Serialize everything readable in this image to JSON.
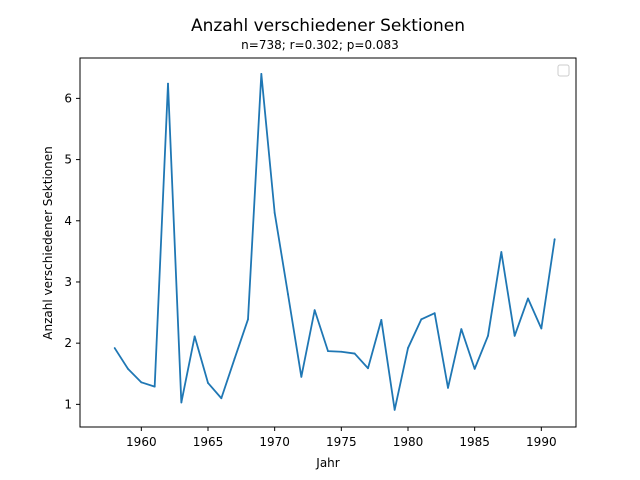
{
  "chart_data": {
    "type": "line",
    "title": "Anzahl verschiedener Sektionen",
    "subtitle": "n=738; r=0.302; p=0.083",
    "xlabel": "Jahr",
    "ylabel": "Anzahl verschiedener Sektionen",
    "xlim": [
      1955.4,
      1992.6
    ],
    "ylim": [
      0.63,
      6.66
    ],
    "xticks": [
      1960,
      1965,
      1970,
      1975,
      1980,
      1985,
      1990
    ],
    "yticks": [
      1,
      2,
      3,
      4,
      5,
      6
    ],
    "grid": false,
    "legend": "top-right (empty)",
    "series": [
      {
        "color": "#1f77b4",
        "x": [
          1958,
          1959,
          1960,
          1961,
          1962,
          1963,
          1964,
          1965,
          1966,
          1967,
          1968,
          1969,
          1970,
          1971,
          1972,
          1973,
          1974,
          1975,
          1976,
          1977,
          1978,
          1979,
          1980,
          1981,
          1982,
          1983,
          1984,
          1985,
          1986,
          1987,
          1988,
          1989,
          1990,
          1991
        ],
        "y": [
          1.92,
          1.58,
          1.36,
          1.29,
          6.24,
          1.03,
          2.11,
          1.35,
          1.1,
          1.75,
          2.39,
          6.4,
          4.13,
          2.8,
          1.45,
          2.54,
          1.87,
          1.86,
          1.83,
          1.59,
          2.38,
          0.91,
          1.92,
          2.39,
          2.49,
          1.27,
          2.23,
          1.58,
          2.12,
          3.49,
          2.12,
          2.73,
          2.24,
          3.7
        ]
      }
    ]
  }
}
